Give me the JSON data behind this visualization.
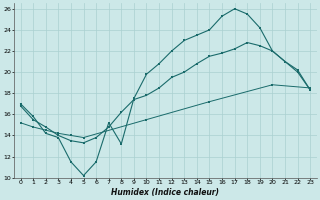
{
  "xlabel": "Humidex (Indice chaleur)",
  "bg_color": "#cce8e8",
  "grid_color": "#aad0d0",
  "line_color": "#1a6b6b",
  "xlim": [
    -0.5,
    23.5
  ],
  "ylim": [
    10,
    26.5
  ],
  "xticks": [
    0,
    1,
    2,
    3,
    4,
    5,
    6,
    7,
    8,
    9,
    10,
    11,
    12,
    13,
    14,
    15,
    16,
    17,
    18,
    19,
    20,
    21,
    22,
    23
  ],
  "yticks": [
    10,
    12,
    14,
    16,
    18,
    20,
    22,
    24,
    26
  ],
  "curve1_x": [
    0,
    1,
    2,
    3,
    4,
    5,
    6,
    7,
    8,
    9,
    10,
    11,
    12,
    13,
    14,
    15,
    16,
    17,
    18,
    19,
    20,
    21,
    22,
    23
  ],
  "curve1_y": [
    17,
    15.8,
    14.2,
    13.8,
    11.5,
    10.2,
    11.5,
    15.2,
    13.2,
    17.5,
    19.8,
    20.8,
    22.0,
    23.0,
    23.5,
    24.0,
    25.3,
    26.0,
    25.5,
    24.2,
    22.0,
    21.0,
    20.2,
    18.3
  ],
  "curve2_x": [
    0,
    1,
    2,
    3,
    4,
    5,
    6,
    7,
    8,
    9,
    10,
    11,
    12,
    13,
    14,
    15,
    16,
    17,
    18,
    19,
    20,
    21,
    22,
    23
  ],
  "curve2_y": [
    16.8,
    15.5,
    14.8,
    14.0,
    13.5,
    13.3,
    13.8,
    14.8,
    16.2,
    17.4,
    17.8,
    18.5,
    19.5,
    20.0,
    20.8,
    21.5,
    21.8,
    22.2,
    22.8,
    22.5,
    22.0,
    21.0,
    20.0,
    18.3
  ],
  "curve3_x": [
    0,
    1,
    2,
    3,
    4,
    5,
    10,
    15,
    20,
    23
  ],
  "curve3_y": [
    15.2,
    14.8,
    14.5,
    14.2,
    14.0,
    13.8,
    15.5,
    17.2,
    18.8,
    18.5
  ]
}
